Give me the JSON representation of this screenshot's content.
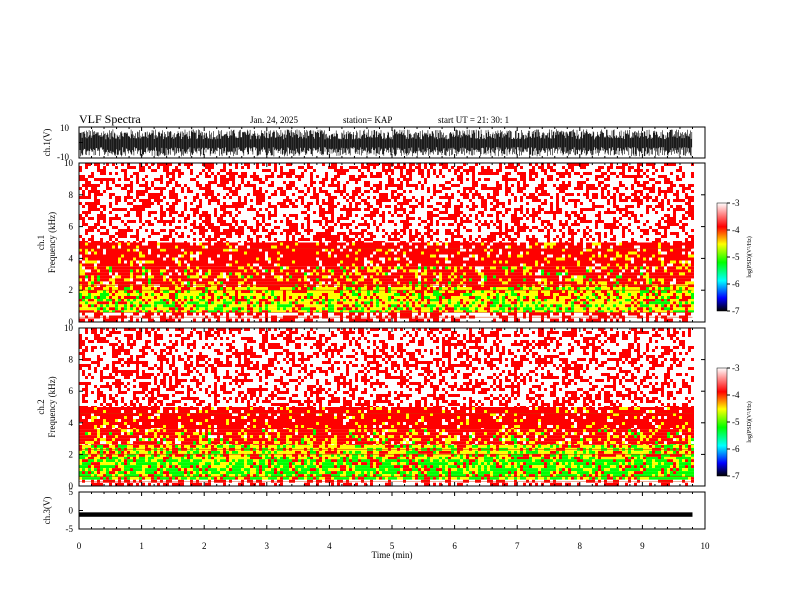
{
  "header": {
    "title": "VLF Spectra",
    "date": "Jan. 24, 2025",
    "station": "station= KAP",
    "start": "start  UT =  21: 30: 1"
  },
  "colors": {
    "spectrogram": [
      "#ffffff",
      "#ff0000",
      "#ffff00",
      "#00ff00",
      "#00ffff",
      "#0000ff",
      "#000000"
    ],
    "trace": "#000000"
  },
  "chart_data": [
    {
      "type": "line",
      "name": "ch1-waveform",
      "ylabel": "ch.1(V)",
      "ylim": [
        -10,
        10
      ],
      "yticks": [
        "10",
        "-10"
      ],
      "xlim": [
        0,
        10
      ],
      "description_values": "dense waveform filling roughly -9 to 8 V across 0–9.8 min"
    },
    {
      "type": "heatmap",
      "name": "ch1-spectrogram",
      "ylabel": "ch.1\nFrequency (kHz)",
      "ylabel_lines": [
        "ch.1",
        "Frequency (kHz)"
      ],
      "ylim": [
        0,
        10
      ],
      "yticks": [
        "0",
        "2",
        "4",
        "6",
        "8",
        "10"
      ],
      "xlim": [
        0,
        9.8
      ],
      "colorbar": {
        "label": "log(PSD)(V²/Hz)",
        "ticks": [
          "-3",
          "-4",
          "-5",
          "-6",
          "-7"
        ],
        "range": [
          -7,
          -3
        ]
      },
      "bands": [
        {
          "from": 0,
          "to": 0.6,
          "level": -3.3
        },
        {
          "from": 0.6,
          "to": 1.3,
          "level": -4.6
        },
        {
          "from": 1.3,
          "to": 2.2,
          "level": -4.5
        },
        {
          "from": 2.2,
          "to": 3.5,
          "level": -4.1
        },
        {
          "from": 3.5,
          "to": 5.0,
          "level": -3.8
        },
        {
          "from": 5.0,
          "to": 10,
          "level": -3.3
        }
      ]
    },
    {
      "type": "heatmap",
      "name": "ch2-spectrogram",
      "ylabel": "ch.2\nFrequency (kHz)",
      "ylabel_lines": [
        "ch.2",
        "Frequency (kHz)"
      ],
      "ylim": [
        0,
        10
      ],
      "yticks": [
        "0",
        "2",
        "4",
        "6",
        "8",
        "10"
      ],
      "xlim": [
        0,
        9.8
      ],
      "colorbar": {
        "label": "log(PSD)(V²/Hz)",
        "ticks": [
          "-3",
          "-4",
          "-5",
          "-6",
          "-7"
        ],
        "range": [
          -7,
          -3
        ]
      },
      "bands": [
        {
          "from": 0,
          "to": 0.4,
          "level": -3.4
        },
        {
          "from": 0.4,
          "to": 1.7,
          "level": -4.9
        },
        {
          "from": 1.7,
          "to": 2.6,
          "level": -4.6
        },
        {
          "from": 2.6,
          "to": 3.6,
          "level": -4.1
        },
        {
          "from": 3.6,
          "to": 5.0,
          "level": -3.8
        },
        {
          "from": 5.0,
          "to": 10,
          "level": -3.3
        }
      ]
    },
    {
      "type": "line",
      "name": "ch3-waveform",
      "ylabel": "ch.3(V)",
      "ylim": [
        -5,
        5
      ],
      "yticks": [
        "5",
        "0",
        "-5"
      ],
      "xlim": [
        0,
        10
      ],
      "description_values": "narrow band near -1 V across 0–9.8 min"
    }
  ],
  "xaxis": {
    "label": "Time (min)",
    "ticks": [
      "0",
      "1",
      "2",
      "3",
      "4",
      "5",
      "6",
      "7",
      "8",
      "9",
      "10"
    ],
    "range": [
      0,
      10
    ]
  }
}
